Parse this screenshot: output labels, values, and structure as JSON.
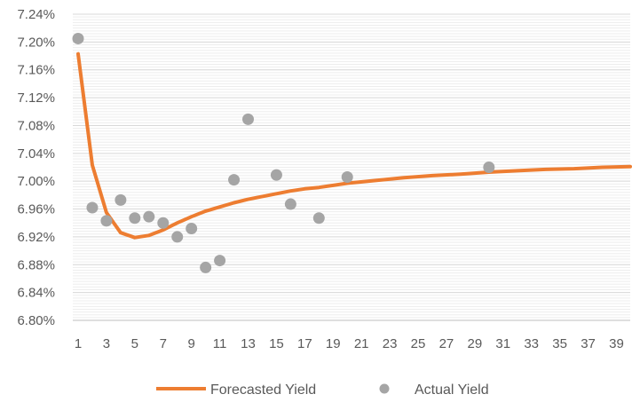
{
  "chart_data": {
    "type": "line",
    "title": "",
    "xlabel": "",
    "ylabel": "",
    "xlim": [
      1,
      40
    ],
    "ylim": [
      6.8,
      7.24
    ],
    "grid": true,
    "legend_position": "bottom",
    "y_ticks": [
      6.8,
      6.84,
      6.88,
      6.92,
      6.96,
      7.0,
      7.04,
      7.08,
      7.12,
      7.16,
      7.2,
      7.24
    ],
    "y_tick_labels": [
      "6.80%",
      "6.84%",
      "6.88%",
      "6.92%",
      "6.96%",
      "7.00%",
      "7.04%",
      "7.08%",
      "7.12%",
      "7.16%",
      "7.20%",
      "7.24%"
    ],
    "x_ticks": [
      1,
      3,
      5,
      7,
      9,
      11,
      13,
      15,
      17,
      19,
      21,
      23,
      25,
      27,
      29,
      31,
      33,
      35,
      37,
      39
    ],
    "x_tick_labels": [
      "1",
      "3",
      "5",
      "7",
      "9",
      "11",
      "13",
      "15",
      "17",
      "19",
      "21",
      "23",
      "25",
      "27",
      "29",
      "31",
      "33",
      "35",
      "37",
      "39"
    ],
    "series": [
      {
        "name": "Forecasted Yield",
        "type": "line",
        "color": "#ED7D31",
        "x": [
          1,
          2,
          3,
          4,
          5,
          6,
          7,
          8,
          9,
          10,
          11,
          12,
          13,
          14,
          15,
          16,
          17,
          18,
          19,
          20,
          22,
          24,
          26,
          28,
          30,
          32,
          34,
          36,
          38,
          40
        ],
        "y": [
          7.183,
          7.023,
          6.955,
          6.926,
          6.919,
          6.922,
          6.93,
          6.94,
          6.949,
          6.957,
          6.963,
          6.969,
          6.974,
          6.978,
          6.982,
          6.986,
          6.989,
          6.991,
          6.994,
          6.997,
          7.001,
          7.005,
          7.008,
          7.01,
          7.013,
          7.015,
          7.017,
          7.018,
          7.02,
          7.021
        ]
      },
      {
        "name": "Actual Yield",
        "type": "scatter",
        "color": "#A5A5A5",
        "x": [
          1,
          2,
          3,
          4,
          5,
          6,
          7,
          8,
          9,
          10,
          11,
          12,
          13,
          15,
          16,
          18,
          20,
          30
        ],
        "y": [
          7.205,
          6.962,
          6.943,
          6.973,
          6.947,
          6.949,
          6.94,
          6.92,
          6.932,
          6.876,
          6.886,
          7.002,
          7.089,
          7.009,
          6.967,
          6.947,
          7.006,
          7.02
        ]
      }
    ]
  }
}
